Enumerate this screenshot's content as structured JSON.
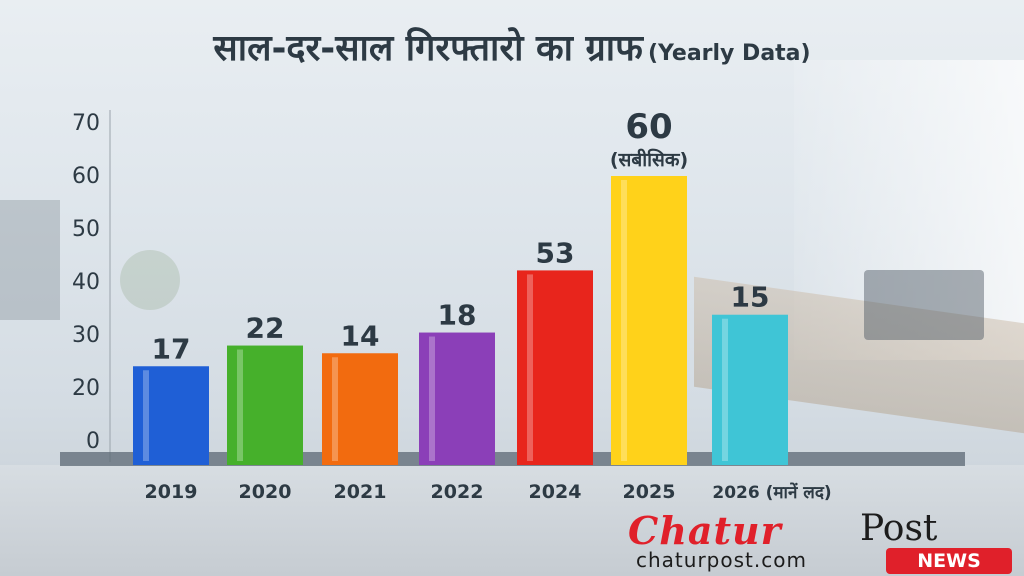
{
  "title": {
    "main": "साल-दर-साल गिरफ्तारो का ग्राफ",
    "sub": "(Yearly Data)"
  },
  "chart_data": {
    "type": "bar",
    "categories": [
      "2019",
      "2020",
      "2021",
      "2022",
      "2024",
      "2025",
      "2026 (मानें लद)"
    ],
    "values": [
      17,
      22,
      14,
      18,
      53,
      60,
      15
    ],
    "bar_heights": [
      20.5,
      24.8,
      23.2,
      27.5,
      40.4,
      60,
      31.2
    ],
    "annotations": [
      {
        "category": "2025",
        "text": "(सबीसिक)"
      }
    ],
    "yticks": [
      0,
      20,
      30,
      40,
      50,
      60,
      70
    ],
    "ylim": [
      0,
      70
    ],
    "grid": false,
    "colors": [
      "#1f5fd6",
      "#46b02b",
      "#f26b0f",
      "#8b3fb8",
      "#e8251c",
      "#ffd21a",
      "#3fc5d6"
    ]
  },
  "logo": {
    "word1": "Chatur",
    "word2": "Post",
    "url": "chaturpost.com",
    "badge": "NEWS"
  }
}
